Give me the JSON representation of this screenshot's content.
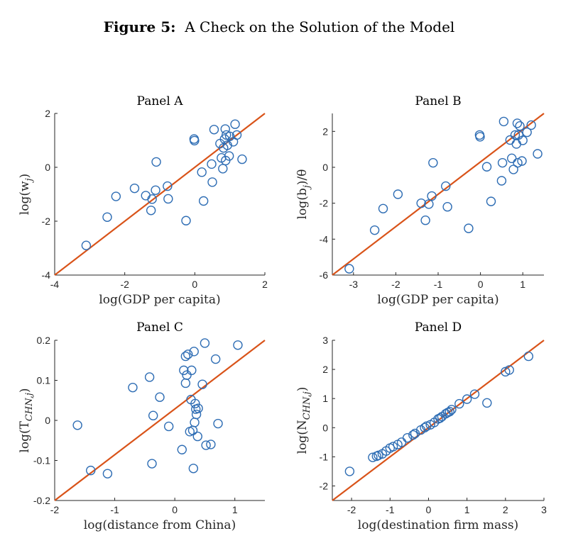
{
  "figure": {
    "label": "Figure 5:",
    "caption": "A Check on the Solution of the Model"
  },
  "colors": {
    "marker": "#2E6DB4",
    "line": "#D95319",
    "axis": "#262626"
  },
  "chart_data": [
    {
      "type": "scatter",
      "title": "Panel A",
      "xlabel": "log(GDP per capita)",
      "ylabel": "log(w_j)",
      "ylabel_main": "log(w",
      "ylabel_sub": "j",
      "ylabel_tail": ")",
      "xlim": [
        -4,
        2
      ],
      "ylim": [
        -4,
        2
      ],
      "xticks": [
        -4,
        -2,
        0,
        2
      ],
      "yticks": [
        -4,
        -2,
        0,
        2
      ],
      "xtick_labels": [
        "-4",
        "-2",
        "0",
        "2"
      ],
      "ytick_labels": [
        "-4",
        "-2",
        "0",
        "2"
      ],
      "line": [
        [
          -4,
          -4
        ],
        [
          2,
          2
        ]
      ],
      "points": [
        [
          -3.1,
          -2.9
        ],
        [
          -2.5,
          -1.85
        ],
        [
          -2.25,
          -1.08
        ],
        [
          -1.72,
          -0.78
        ],
        [
          -1.4,
          -1.05
        ],
        [
          -1.25,
          -1.6
        ],
        [
          -1.22,
          -1.18
        ],
        [
          -1.12,
          -0.85
        ],
        [
          -1.1,
          0.2
        ],
        [
          -0.78,
          -0.7
        ],
        [
          -0.76,
          -1.17
        ],
        [
          -0.25,
          -1.98
        ],
        [
          -0.02,
          1.05
        ],
        [
          -0.01,
          0.99
        ],
        [
          0.2,
          -0.18
        ],
        [
          0.25,
          -1.25
        ],
        [
          0.48,
          0.12
        ],
        [
          0.5,
          -0.55
        ],
        [
          0.55,
          1.4
        ],
        [
          0.72,
          0.88
        ],
        [
          0.76,
          0.35
        ],
        [
          0.8,
          -0.05
        ],
        [
          0.82,
          0.72
        ],
        [
          0.85,
          1.05
        ],
        [
          0.87,
          1.42
        ],
        [
          0.88,
          0.25
        ],
        [
          0.9,
          1.2
        ],
        [
          0.93,
          0.82
        ],
        [
          0.98,
          0.42
        ],
        [
          1.0,
          1.15
        ],
        [
          1.1,
          0.95
        ],
        [
          1.15,
          1.6
        ],
        [
          1.2,
          1.2
        ],
        [
          1.35,
          0.3
        ]
      ]
    },
    {
      "type": "scatter",
      "title": "Panel B",
      "xlabel": "log(GDP per capita)",
      "ylabel": "log(b_j)/θ",
      "ylabel_main": "log(b",
      "ylabel_sub": "j",
      "ylabel_tail": ")/θ",
      "xlim": [
        -3.5,
        1.5
      ],
      "ylim": [
        -6,
        3
      ],
      "xticks": [
        -3,
        -2,
        -1,
        0,
        1
      ],
      "yticks": [
        -6,
        -4,
        -2,
        0,
        2
      ],
      "xtick_labels": [
        "-3",
        "-2",
        "-1",
        "0",
        "1"
      ],
      "ytick_labels": [
        "-6",
        "-4",
        "-2",
        "0",
        "2"
      ],
      "line": [
        [
          -3.5,
          -6
        ],
        [
          1.5,
          3
        ]
      ],
      "points": [
        [
          -3.1,
          -5.65
        ],
        [
          -2.5,
          -3.5
        ],
        [
          -2.3,
          -2.3
        ],
        [
          -1.95,
          -1.5
        ],
        [
          -1.4,
          -2.0
        ],
        [
          -1.3,
          -2.95
        ],
        [
          -1.22,
          -2.05
        ],
        [
          -1.15,
          -1.6
        ],
        [
          -1.12,
          0.25
        ],
        [
          -0.82,
          -1.05
        ],
        [
          -0.78,
          -2.2
        ],
        [
          -0.28,
          -3.4
        ],
        [
          -0.02,
          1.8
        ],
        [
          -0.01,
          1.7
        ],
        [
          0.15,
          0.03
        ],
        [
          0.25,
          -1.9
        ],
        [
          0.5,
          -0.75
        ],
        [
          0.52,
          0.25
        ],
        [
          0.55,
          2.55
        ],
        [
          0.7,
          1.52
        ],
        [
          0.74,
          0.5
        ],
        [
          0.78,
          -0.12
        ],
        [
          0.82,
          1.8
        ],
        [
          0.85,
          1.3
        ],
        [
          0.87,
          2.45
        ],
        [
          0.88,
          0.25
        ],
        [
          0.9,
          1.8
        ],
        [
          0.93,
          2.3
        ],
        [
          0.98,
          0.35
        ],
        [
          1.0,
          1.5
        ],
        [
          1.1,
          1.95
        ],
        [
          1.2,
          2.35
        ],
        [
          1.35,
          0.75
        ]
      ]
    },
    {
      "type": "scatter",
      "title": "Panel C",
      "xlabel": "log(distance from China)",
      "ylabel": "log(T_CHN,j)",
      "ylabel_main": "log(T",
      "ylabel_sub": "CHN,j",
      "ylabel_tail": ")",
      "xlim": [
        -2,
        1.5
      ],
      "ylim": [
        -0.2,
        0.2
      ],
      "xticks": [
        -2,
        -1,
        0,
        1
      ],
      "yticks": [
        -0.2,
        -0.1,
        0,
        0.1,
        0.2
      ],
      "xtick_labels": [
        "-2",
        "-1",
        "0",
        "1"
      ],
      "ytick_labels": [
        "-0.2",
        "-0.1",
        "0",
        "0.1",
        "0.2"
      ],
      "line": [
        [
          -2,
          -0.2
        ],
        [
          1.5,
          0.2
        ]
      ],
      "points": [
        [
          -1.62,
          -0.012
        ],
        [
          -1.4,
          -0.125
        ],
        [
          -1.12,
          -0.133
        ],
        [
          -0.7,
          0.082
        ],
        [
          -0.42,
          0.108
        ],
        [
          -0.38,
          -0.108
        ],
        [
          -0.36,
          0.012
        ],
        [
          -0.25,
          0.058
        ],
        [
          -0.1,
          -0.015
        ],
        [
          0.12,
          -0.073
        ],
        [
          0.15,
          0.125
        ],
        [
          0.18,
          0.093
        ],
        [
          0.18,
          0.16
        ],
        [
          0.2,
          0.113
        ],
        [
          0.22,
          0.165
        ],
        [
          0.25,
          -0.028
        ],
        [
          0.27,
          0.052
        ],
        [
          0.28,
          0.125
        ],
        [
          0.3,
          -0.025
        ],
        [
          0.31,
          -0.12
        ],
        [
          0.32,
          0.172
        ],
        [
          0.33,
          -0.005
        ],
        [
          0.34,
          0.042
        ],
        [
          0.35,
          0.028
        ],
        [
          0.36,
          0.015
        ],
        [
          0.38,
          -0.04
        ],
        [
          0.39,
          0.03
        ],
        [
          0.46,
          0.09
        ],
        [
          0.5,
          0.193
        ],
        [
          0.52,
          -0.062
        ],
        [
          0.6,
          -0.06
        ],
        [
          0.68,
          0.153
        ],
        [
          0.72,
          -0.008
        ],
        [
          1.05,
          0.188
        ]
      ]
    },
    {
      "type": "scatter",
      "title": "Panel D",
      "xlabel": "log(destination firm mass)",
      "ylabel": "log(N_CHN,j)",
      "ylabel_main": "log(N",
      "ylabel_sub": "CHN,j",
      "ylabel_tail": ")",
      "xlim": [
        -2.5,
        3
      ],
      "ylim": [
        -2.5,
        3
      ],
      "xticks": [
        -2,
        -1,
        0,
        1,
        2,
        3
      ],
      "yticks": [
        -2,
        -1,
        0,
        1,
        2,
        3
      ],
      "xtick_labels": [
        "-2",
        "-1",
        "0",
        "1",
        "2",
        "3"
      ],
      "ytick_labels": [
        "-2",
        "-1",
        "0",
        "1",
        "2",
        "3"
      ],
      "line": [
        [
          -2.5,
          -2.5
        ],
        [
          3,
          3
        ]
      ],
      "points": [
        [
          -2.05,
          -1.5
        ],
        [
          -1.45,
          -1.02
        ],
        [
          -1.35,
          -0.98
        ],
        [
          -1.3,
          -0.95
        ],
        [
          -1.2,
          -0.9
        ],
        [
          -1.1,
          -0.8
        ],
        [
          -1.0,
          -0.7
        ],
        [
          -0.92,
          -0.65
        ],
        [
          -0.8,
          -0.58
        ],
        [
          -0.7,
          -0.5
        ],
        [
          -0.55,
          -0.35
        ],
        [
          -0.4,
          -0.25
        ],
        [
          -0.35,
          -0.2
        ],
        [
          -0.2,
          -0.08
        ],
        [
          -0.1,
          0.0
        ],
        [
          -0.05,
          0.05
        ],
        [
          0.05,
          0.1
        ],
        [
          0.15,
          0.18
        ],
        [
          0.25,
          0.3
        ],
        [
          0.3,
          0.33
        ],
        [
          0.35,
          0.38
        ],
        [
          0.45,
          0.48
        ],
        [
          0.5,
          0.52
        ],
        [
          0.55,
          0.55
        ],
        [
          0.6,
          0.62
        ],
        [
          0.8,
          0.82
        ],
        [
          1.0,
          0.98
        ],
        [
          1.2,
          1.15
        ],
        [
          1.52,
          0.85
        ],
        [
          2.0,
          1.92
        ],
        [
          2.1,
          1.98
        ],
        [
          2.6,
          2.45
        ]
      ]
    }
  ]
}
